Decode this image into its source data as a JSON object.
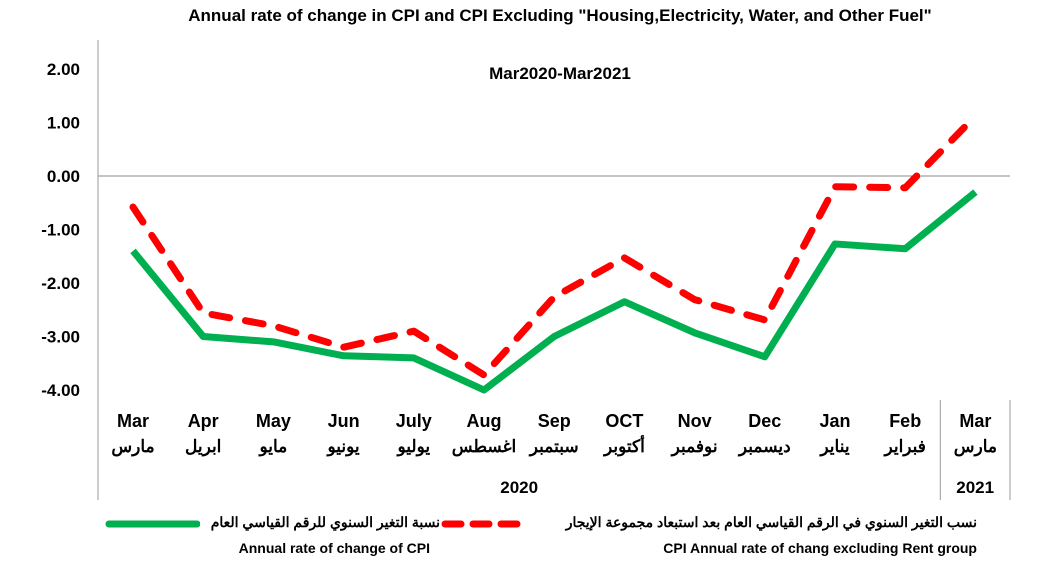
{
  "chart_data": {
    "type": "line",
    "title": "Annual rate of change in CPI  and  CPI  Excluding \"Housing,Electricity, Water, and Other Fuel\"",
    "subtitle": "Mar2020-Mar2021",
    "categories": [
      "Mar",
      "Apr",
      "May",
      "Jun",
      "July",
      "Aug",
      "Sep",
      "OCT",
      "Nov",
      "Dec",
      "Jan",
      "Feb",
      "Mar"
    ],
    "categories_ar": [
      "مارس",
      "ابريل",
      "مايو",
      "يونيو",
      "يوليو",
      "اغسطس",
      "سبتمبر",
      "أكتوبر",
      "نوفمبر",
      "ديسمبر",
      "يناير",
      "فبراير",
      "مارس"
    ],
    "years": [
      {
        "label": "2020",
        "span": 12
      },
      {
        "label": "2021",
        "span": 1
      }
    ],
    "ylim": [
      -4,
      2
    ],
    "yticks": [
      "2.00",
      "1.00",
      "0.00",
      "-1.00",
      "-2.00",
      "-3.00",
      "-4.00"
    ],
    "grid": false,
    "legend_position": "bottom",
    "series": [
      {
        "name": "Annual rate of change of CPI",
        "name_ar": "نسبة التغير السنوي للرقم القياسي  العام",
        "color": "#00b050",
        "style": "solid",
        "values": [
          -1.4,
          -3.0,
          -3.1,
          -3.36,
          -3.4,
          -4.0,
          -3.0,
          -2.35,
          -2.93,
          -3.38,
          -1.27,
          -1.36,
          -0.3
        ]
      },
      {
        "name": "CPI Annual rate of chang excluding Rent group",
        "name_ar": "نسب التغير السنوي في الرقم القياسي العام بعد استبعاد مجموعة الإيجار",
        "color": "#ff0000",
        "style": "dashed",
        "values": [
          -0.58,
          -2.56,
          -2.8,
          -3.2,
          -2.9,
          -3.72,
          -2.26,
          -1.53,
          -2.31,
          -2.69,
          -0.2,
          -0.22,
          1.12
        ]
      }
    ]
  }
}
